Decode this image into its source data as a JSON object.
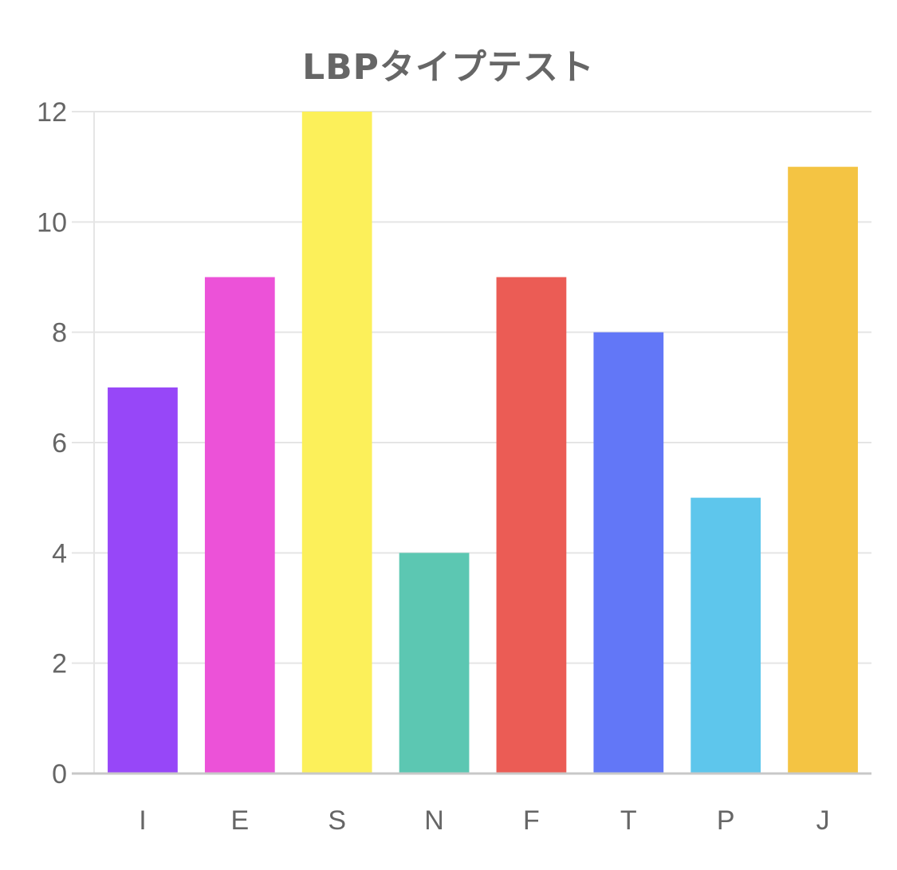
{
  "chart_data": {
    "type": "bar",
    "title": "LBPタイプテスト",
    "categories": [
      "I",
      "E",
      "S",
      "N",
      "F",
      "T",
      "P",
      "J"
    ],
    "values": [
      7,
      9,
      12,
      4,
      9,
      8,
      5,
      11
    ],
    "colors": [
      "#9747F8",
      "#EC52D8",
      "#FCF05A",
      "#5CC7B2",
      "#EB5C55",
      "#6277F7",
      "#5EC6EC",
      "#F4C443"
    ],
    "ylim": [
      0,
      12
    ],
    "yticks": [
      0,
      2,
      4,
      6,
      8,
      10,
      12
    ],
    "grid": true,
    "legend": "none",
    "gridColor": "#e5e5e5",
    "axisColor": "#c8c8c8",
    "textColor": "#666666"
  }
}
